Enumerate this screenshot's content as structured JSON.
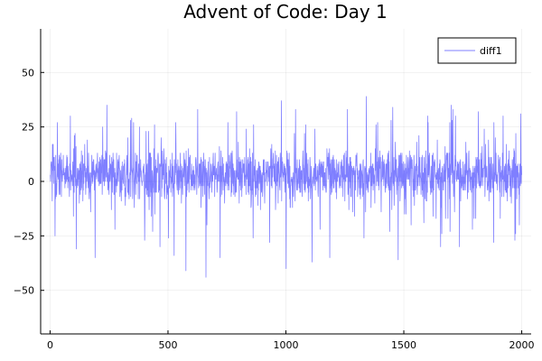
{
  "chart_data": {
    "type": "line",
    "title": "Advent of Code: Day 1",
    "xlabel": "",
    "ylabel": "",
    "xlim": [
      -40,
      2040
    ],
    "ylim": [
      -70,
      70
    ],
    "xticks": [
      0,
      500,
      1000,
      1500,
      2000
    ],
    "yticks": [
      -50,
      -25,
      0,
      25,
      50
    ],
    "xtick_labels": [
      "0",
      "500",
      "1000",
      "1500",
      "2000"
    ],
    "ytick_labels": [
      "−50",
      "−25",
      "0",
      "25",
      "50"
    ],
    "grid": true,
    "legend": {
      "position": "top-right",
      "entries": [
        "diff1"
      ]
    },
    "series": [
      {
        "name": "diff1",
        "color": "#0000ff",
        "opacity": 0.5,
        "n_points": 2000,
        "value_range": [
          -44,
          39
        ],
        "typical_band": [
          -12,
          18
        ],
        "notable_points": [
          {
            "x": 20,
            "y": -25
          },
          {
            "x": 30,
            "y": 27
          },
          {
            "x": 110,
            "y": -31
          },
          {
            "x": 190,
            "y": -35
          },
          {
            "x": 240,
            "y": 35
          },
          {
            "x": 345,
            "y": 29
          },
          {
            "x": 400,
            "y": -27
          },
          {
            "x": 465,
            "y": -30
          },
          {
            "x": 525,
            "y": -34
          },
          {
            "x": 575,
            "y": -41
          },
          {
            "x": 625,
            "y": 33
          },
          {
            "x": 660,
            "y": -44
          },
          {
            "x": 720,
            "y": -35
          },
          {
            "x": 790,
            "y": 32
          },
          {
            "x": 860,
            "y": -26
          },
          {
            "x": 930,
            "y": -28
          },
          {
            "x": 980,
            "y": 37
          },
          {
            "x": 1000,
            "y": -40
          },
          {
            "x": 1040,
            "y": 33
          },
          {
            "x": 1110,
            "y": -37
          },
          {
            "x": 1185,
            "y": -35
          },
          {
            "x": 1260,
            "y": 33
          },
          {
            "x": 1330,
            "y": -26
          },
          {
            "x": 1340,
            "y": 39
          },
          {
            "x": 1475,
            "y": -36
          },
          {
            "x": 1530,
            "y": -20
          },
          {
            "x": 1600,
            "y": 30
          },
          {
            "x": 1660,
            "y": -24
          },
          {
            "x": 1700,
            "y": 35
          },
          {
            "x": 1735,
            "y": -30
          },
          {
            "x": 1790,
            "y": -22
          },
          {
            "x": 1880,
            "y": -28
          },
          {
            "x": 1920,
            "y": 30
          },
          {
            "x": 1970,
            "y": -27
          },
          {
            "x": 1995,
            "y": 31
          }
        ]
      }
    ]
  }
}
